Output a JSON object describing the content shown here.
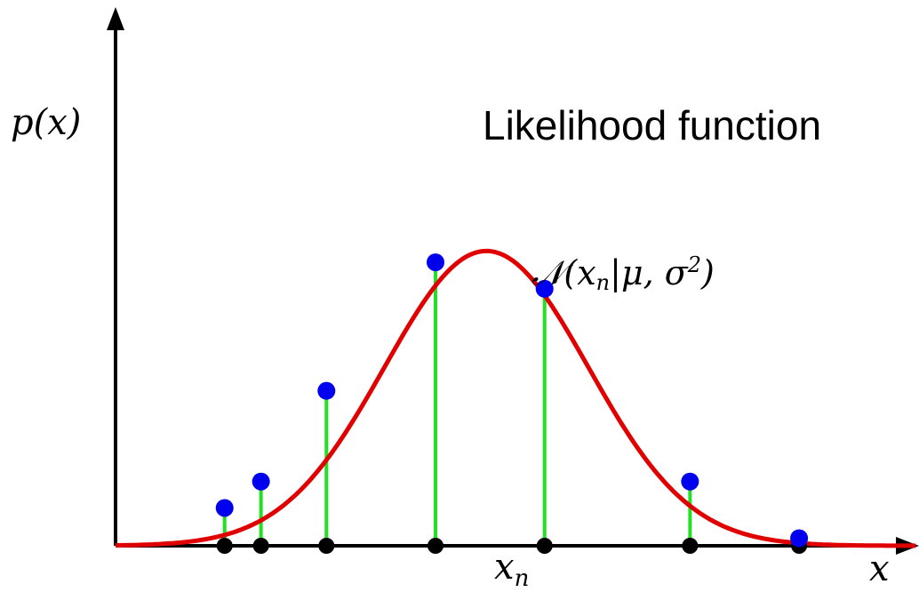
{
  "title": "Likelihood function",
  "y_axis_label": "p(x)",
  "x_axis_label": "x",
  "sample_label": "x_n",
  "curve_annotation": "N(x_n|μ, σ^2)",
  "colors": {
    "curve": "#e00000",
    "stems": "#22e022",
    "points": "#0000ee",
    "samples": "#000000",
    "axes": "#000000"
  },
  "chart_data": {
    "type": "line",
    "title": "Likelihood function",
    "xlabel": "x",
    "ylabel": "p(x)",
    "curve": {
      "name": "N(x_n|μ, σ^2)",
      "distribution": "gaussian",
      "mean": 0.51,
      "std": 0.14,
      "peak_density": 0.78
    },
    "samples_x": [
      0.15,
      0.2,
      0.29,
      0.44,
      0.59,
      0.79,
      0.94
    ],
    "density_at_samples": [
      0.1,
      0.17,
      0.41,
      0.75,
      0.68,
      0.17,
      0.02
    ],
    "labeled_sample_x": 0.59,
    "xlim": [
      0,
      1.1
    ],
    "ylim": [
      0,
      1.35
    ]
  }
}
